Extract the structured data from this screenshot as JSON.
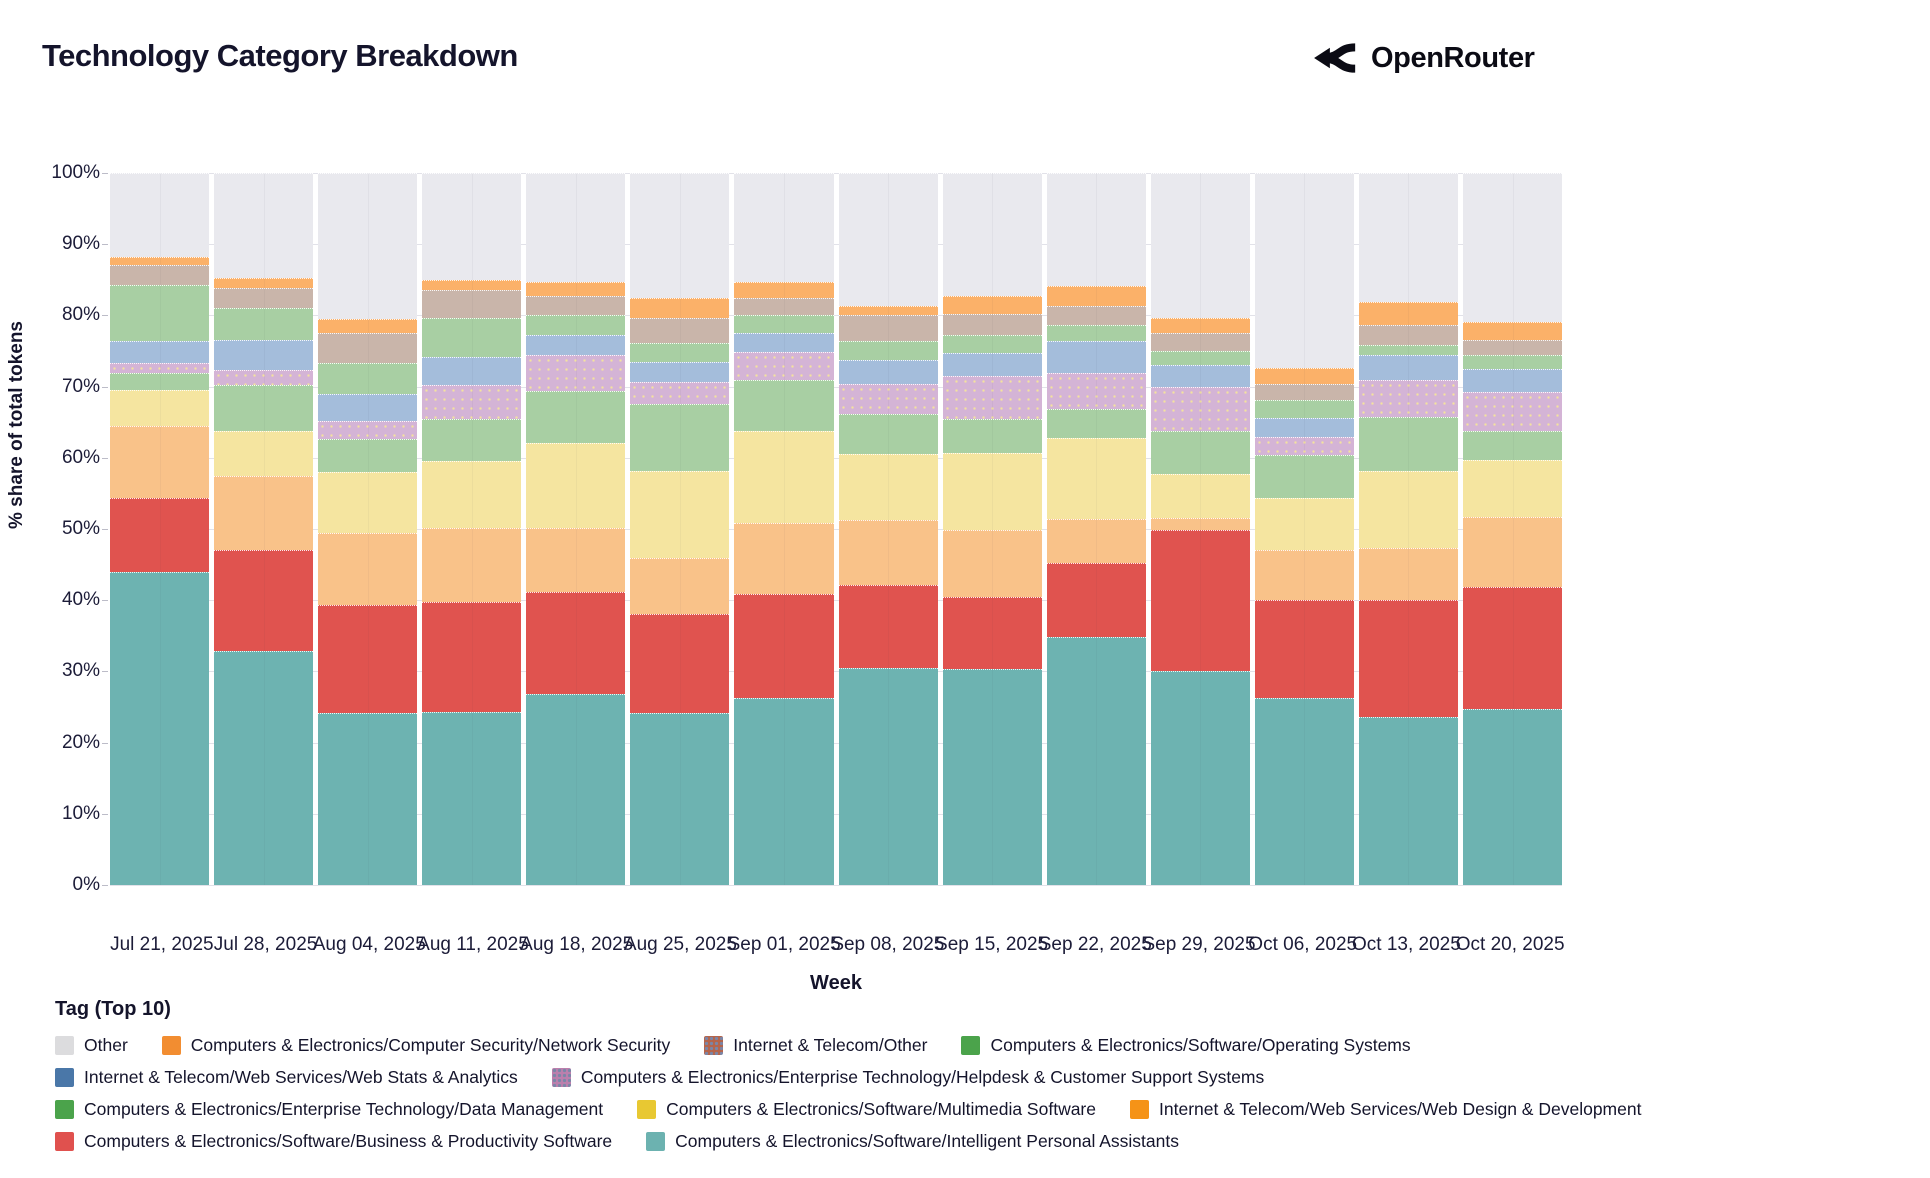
{
  "header": {
    "title": "Technology Category Breakdown",
    "logo_text": "OpenRouter"
  },
  "chart_data": {
    "type": "bar",
    "subtype": "stacked-percent",
    "title": "Technology Category Breakdown",
    "xlabel": "Week",
    "ylabel": "% share of total tokens",
    "ylim": [
      0,
      100
    ],
    "y_tick_labels": [
      "0%",
      "10%",
      "20%",
      "30%",
      "40%",
      "50%",
      "60%",
      "70%",
      "80%",
      "90%",
      "100%"
    ],
    "grid": true,
    "legend_position": "bottom",
    "legend_title": "Tag (Top 10)",
    "categories": [
      "Jul 21, 2025",
      "Jul 28, 2025",
      "Aug 04, 2025",
      "Aug 11, 2025",
      "Aug 18, 2025",
      "Aug 25, 2025",
      "Sep 01, 2025",
      "Sep 08, 2025",
      "Sep 15, 2025",
      "Sep 22, 2025",
      "Sep 29, 2025",
      "Oct 06, 2025",
      "Oct 13, 2025",
      "Oct 20, 2025"
    ],
    "series": [
      {
        "name": "Computers & Electronics/Software/Intelligent Personal Assistants",
        "legend_color": "#6cb2b0",
        "bar_color": "#6db3b1",
        "pattern": "none",
        "values": [
          44.0,
          32.9,
          24.1,
          24.3,
          26.8,
          24.2,
          26.3,
          30.5,
          30.4,
          34.8,
          30.0,
          26.3,
          23.6,
          24.7
        ]
      },
      {
        "name": "Computers & Electronics/Software/Business & Productivity Software",
        "legend_color": "#e0514e",
        "bar_color": "#e0534f",
        "pattern": "none",
        "values": [
          10.4,
          14.1,
          15.3,
          15.5,
          14.3,
          13.9,
          14.6,
          11.6,
          10.0,
          10.4,
          19.8,
          13.7,
          16.5,
          17.1
        ]
      },
      {
        "name": "Internet & Telecom/Web Services/Web Design & Development",
        "legend_color": "#f59317",
        "bar_color": "#f9c289",
        "pattern": "none",
        "values": [
          10.1,
          10.4,
          10.1,
          10.3,
          9.0,
          7.9,
          9.9,
          9.1,
          9.5,
          6.2,
          1.7,
          7.0,
          7.2,
          9.9
        ]
      },
      {
        "name": "Computers & Electronics/Software/Multimedia Software",
        "legend_color": "#e8c832",
        "bar_color": "#f5e5a0",
        "pattern": "none",
        "values": [
          5.0,
          6.3,
          8.5,
          9.4,
          12.0,
          12.1,
          12.9,
          9.4,
          10.8,
          11.4,
          6.2,
          7.3,
          10.9,
          8.0
        ]
      },
      {
        "name": "Computers & Electronics/Enterprise Technology/Data Management",
        "legend_color": "#4ba34b",
        "bar_color": "#a8cfa3",
        "pattern": "none",
        "values": [
          2.4,
          6.6,
          4.7,
          5.9,
          7.3,
          9.4,
          7.3,
          5.5,
          4.7,
          4.0,
          6.0,
          6.1,
          7.6,
          4.0
        ]
      },
      {
        "name": "Computers & Electronics/Enterprise Technology/Helpdesk & Customer Support Systems",
        "legend_color": "#bb7fad",
        "bar_color": "#d4b4d6",
        "pattern": "dots-warm",
        "values": [
          1.4,
          2.1,
          2.5,
          4.9,
          5.0,
          3.1,
          3.8,
          4.3,
          6.1,
          5.1,
          6.3,
          2.6,
          5.2,
          5.5
        ]
      },
      {
        "name": "Internet & Telecom/Web Services/Web Stats & Analytics",
        "legend_color": "#4a77a8",
        "bar_color": "#a4bddb",
        "pattern": "none",
        "values": [
          3.1,
          4.1,
          3.8,
          3.8,
          2.8,
          2.8,
          2.8,
          3.4,
          3.2,
          4.5,
          3.0,
          2.6,
          3.4,
          3.3
        ]
      },
      {
        "name": "Computers & Electronics/Software/Operating Systems",
        "legend_color": "#4ba34b",
        "bar_color": "#a8cfa3",
        "pattern": "none",
        "values": [
          7.9,
          4.5,
          4.3,
          5.6,
          2.8,
          2.8,
          2.4,
          2.6,
          2.6,
          2.2,
          2.0,
          2.6,
          1.4,
          1.9
        ]
      },
      {
        "name": "Internet & Telecom/Other",
        "legend_color": "#b5644b",
        "bar_color": "#c9b5aa",
        "pattern": "dots-soft",
        "values": [
          2.8,
          2.8,
          4.2,
          3.9,
          2.8,
          3.5,
          2.4,
          3.6,
          2.9,
          2.7,
          2.6,
          2.2,
          2.8,
          2.2
        ]
      },
      {
        "name": "Computers & Electronics/Computer Security/Network Security",
        "legend_color": "#f28d31",
        "bar_color": "#fbb169",
        "pattern": "none",
        "values": [
          1.1,
          1.4,
          2.0,
          1.4,
          1.9,
          2.7,
          2.3,
          1.4,
          2.6,
          2.9,
          2.0,
          2.2,
          3.3,
          2.5
        ]
      },
      {
        "name": "Other",
        "legend_color": "#dcdcde",
        "bar_color": "#e9e9ee",
        "pattern": "none",
        "values": [
          11.8,
          14.8,
          20.5,
          15.0,
          15.3,
          17.6,
          15.3,
          18.6,
          17.2,
          15.8,
          20.4,
          27.4,
          18.1,
          20.9
        ]
      }
    ],
    "legend_rows": [
      [
        10,
        9,
        8,
        7
      ],
      [
        6,
        5
      ],
      [
        4,
        3,
        2
      ],
      [
        1,
        0
      ]
    ]
  }
}
